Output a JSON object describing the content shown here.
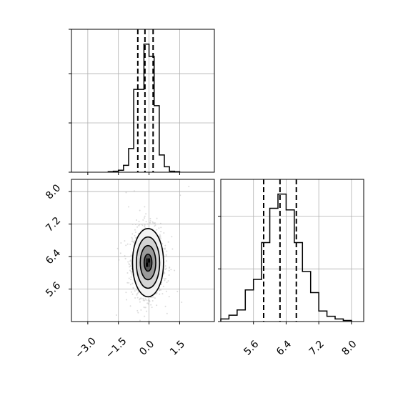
{
  "chart_data": [
    {
      "panel": "marginal-x",
      "type": "histogram",
      "bins": [
        -2.0,
        -1.75,
        -1.5,
        -1.25,
        -1.0,
        -0.75,
        -0.5,
        -0.25,
        0.0,
        0.25,
        0.5,
        0.75,
        1.0,
        1.25,
        1.5
      ],
      "counts": [
        1,
        2,
        4,
        14,
        48,
        168,
        168,
        260,
        235,
        135,
        35,
        11,
        2,
        1
      ],
      "quantile_lines": [
        -0.55,
        -0.2,
        0.2
      ],
      "xlim": [
        -3.8,
        3.2
      ],
      "ylim": [
        0,
        290
      ],
      "xticks": [
        -3.0,
        -1.5,
        0.0,
        1.5
      ],
      "grid": true
    },
    {
      "panel": "marginal-y",
      "type": "histogram",
      "bins": [
        4.8,
        5.0,
        5.2,
        5.4,
        5.6,
        5.8,
        6.0,
        6.2,
        6.4,
        6.6,
        6.8,
        7.0,
        7.2,
        7.4,
        7.6,
        7.8,
        8.0
      ],
      "counts": [
        5,
        12,
        22,
        60,
        80,
        150,
        215,
        242,
        212,
        150,
        95,
        55,
        20,
        10,
        5,
        2
      ],
      "quantile_lines": [
        5.85,
        6.25,
        6.65
      ],
      "xlim": [
        4.8,
        8.3
      ],
      "ylim": [
        0,
        270
      ],
      "xticks": [
        5.6,
        6.4,
        7.2,
        8.0
      ],
      "xtick_labels": [
        "5.6",
        "6.4",
        "7.2",
        "8.0"
      ],
      "grid": true
    },
    {
      "panel": "joint",
      "type": "contour-scatter",
      "center": [
        -0.05,
        6.25
      ],
      "std": [
        0.38,
        0.42
      ],
      "contour_levels_sigma": [
        0.5,
        1.0,
        1.5,
        2.0
      ],
      "xlim": [
        -3.8,
        3.2
      ],
      "ylim": [
        4.8,
        8.3
      ],
      "xticks": [
        -3.0,
        -1.5,
        0.0,
        1.5
      ],
      "xtick_labels": [
        "−3.0",
        "−1.5",
        "0.0",
        "1.5"
      ],
      "yticks": [
        5.6,
        6.4,
        7.2,
        8.0
      ],
      "ytick_labels": [
        "5.6",
        "6.4",
        "7.2",
        "8.0"
      ],
      "grid": true
    }
  ],
  "colors": {
    "line": "#000000",
    "grid": "#b0b0b0",
    "points": "#bfbfbf",
    "dense": "#000000"
  }
}
